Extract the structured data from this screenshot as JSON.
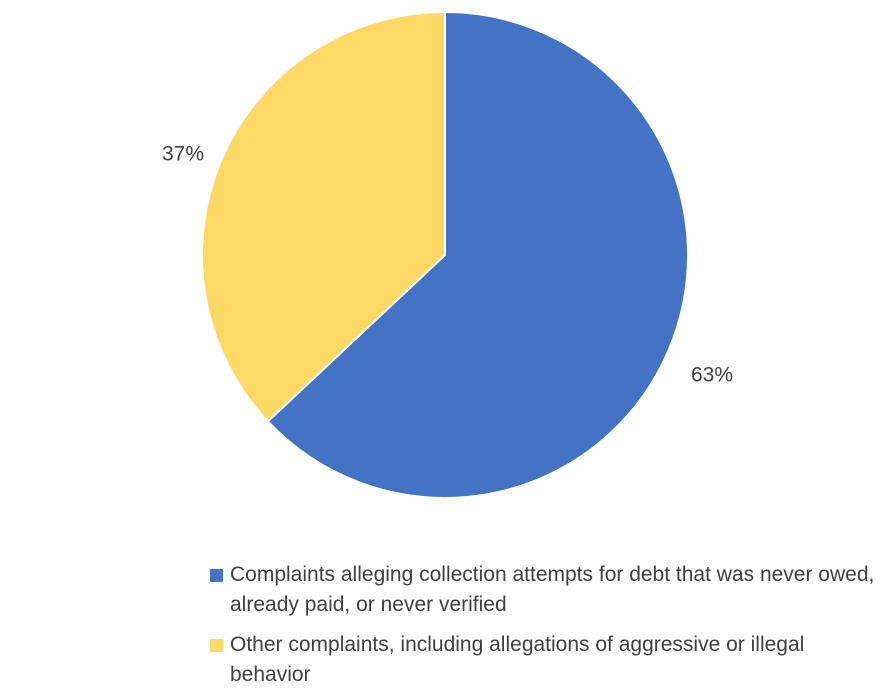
{
  "chart_data": {
    "type": "pie",
    "title": "",
    "slices": [
      {
        "label": "Complaints alleging collection attempts for debt that was never owed, already paid, or never verified",
        "value": 63,
        "display": "63%",
        "color": "#4472C4"
      },
      {
        "label": "Other complaints, including allegations of aggressive or illegal behavior",
        "value": 37,
        "display": "37%",
        "color": "#FFD966"
      }
    ],
    "start_angle": "12 o'clock",
    "direction": "clockwise",
    "legend_position": "bottom"
  },
  "legend": {
    "items": [
      {
        "label": "Complaints alleging collection attempts for debt that was never owed, already paid, or never verified",
        "color": "#4472C4"
      },
      {
        "label": "Other complaints, including allegations of aggressive or illegal behavior",
        "color": "#FFD966"
      }
    ]
  }
}
